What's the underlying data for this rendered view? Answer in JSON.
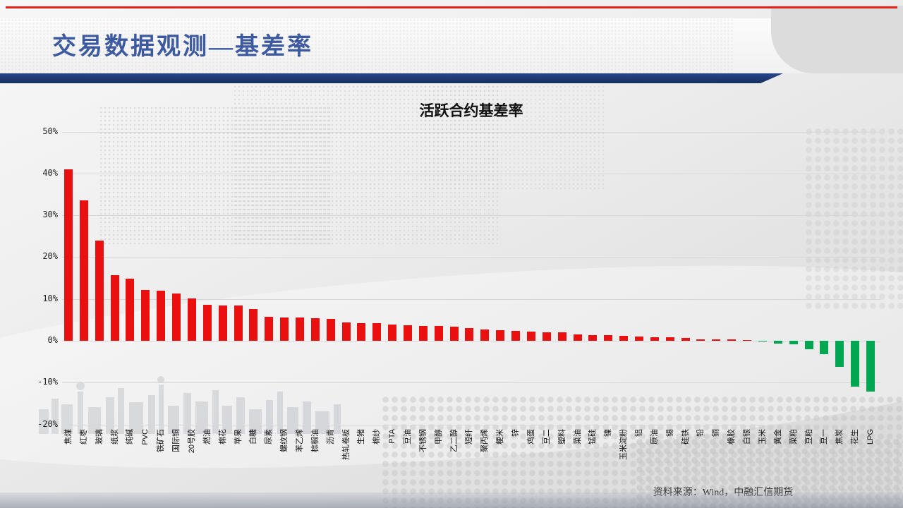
{
  "header": {
    "title": "交易数据观测—基差率"
  },
  "chart_data": {
    "type": "bar",
    "title": "活跃合约基差率",
    "categories": [
      "焦煤",
      "红枣",
      "玻璃",
      "纸浆",
      "纯碱",
      "PVC",
      "铁矿石",
      "国际铜",
      "20号胶",
      "燃油",
      "棉花",
      "苹果",
      "白糖",
      "尿素",
      "螺纹钢",
      "苯乙烯",
      "棕榈油",
      "沥青",
      "热轧卷板",
      "生猪",
      "棉纱",
      "PTA",
      "豆油",
      "不锈钢",
      "甲醇",
      "乙二醇",
      "短纤",
      "聚丙烯",
      "粳米",
      "锌",
      "鸡蛋",
      "豆二",
      "塑料",
      "菜油",
      "锰硅",
      "镍",
      "玉米淀粉",
      "铝",
      "原油",
      "锡",
      "硅铁",
      "铅",
      "铜",
      "橡胶",
      "白银",
      "玉米",
      "黄金",
      "菜粕",
      "豆粕",
      "豆一",
      "焦炭",
      "花生",
      "LPG"
    ],
    "values": [
      41,
      33.5,
      24,
      15.7,
      14.8,
      12.2,
      12,
      11.3,
      10.2,
      8.6,
      8.5,
      8.4,
      7.6,
      5.7,
      5.6,
      5.5,
      5.4,
      5.2,
      4.4,
      4.3,
      4.2,
      3.8,
      3.7,
      3.6,
      3.5,
      3.3,
      3,
      2.7,
      2.5,
      2.3,
      2.2,
      2.1,
      2,
      1.5,
      1.4,
      1.3,
      1.1,
      1,
      0.9,
      0.8,
      0.7,
      0.4,
      0.4,
      0.3,
      0.1,
      -0.1,
      -0.6,
      -0.9,
      -2.1,
      -3.2,
      -6.3,
      -10.9,
      -12.1
    ],
    "yticks": [
      50,
      40,
      30,
      20,
      10,
      0,
      -10,
      -20
    ],
    "ytick_suffix": "%",
    "ylim": [
      -20,
      50
    ],
    "grid": true,
    "legend": "none",
    "positive_color": "#ea1010",
    "negative_color": "#00a651"
  },
  "footer": {
    "source": "资料来源：Wind，中融汇信期货"
  },
  "theme": {
    "title_color": "#3d5aa1",
    "band_color": "#1c3a78",
    "top_line_color": "#e0241b"
  }
}
